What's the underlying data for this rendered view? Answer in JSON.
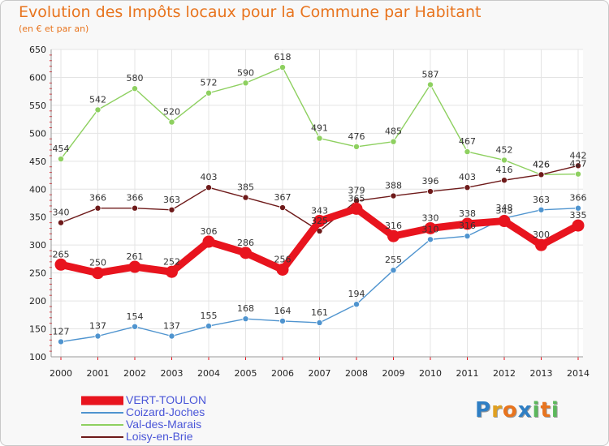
{
  "header": {
    "title": "Evolution des Impôts locaux pour la Commune par Habitant",
    "subtitle": "(en € et par an)"
  },
  "logo": {
    "letters": [
      "P",
      "r",
      "o",
      "x",
      "i",
      "t",
      "i"
    ],
    "colors": [
      "#2f7fc4",
      "#e0a020",
      "#e8741e",
      "#2f7fc4",
      "#5cb85c",
      "#e8741e",
      "#5cb85c"
    ]
  },
  "chart_data": {
    "type": "line",
    "title": "Evolution des Impôts locaux pour la Commune par Habitant",
    "subtitle": "(en € et par an)",
    "x": [
      "2000",
      "2001",
      "2002",
      "2003",
      "2004",
      "2005",
      "2006",
      "2007",
      "2008",
      "2009",
      "2010",
      "2011",
      "2012",
      "2013",
      "2014"
    ],
    "ylim": [
      100,
      650
    ],
    "yticks": [
      100,
      150,
      200,
      250,
      300,
      350,
      400,
      450,
      500,
      550,
      600,
      650
    ],
    "grid": true,
    "legend_position": "bottom-left",
    "series": [
      {
        "name": "VERT-TOULON",
        "color": "#e8141e",
        "values": [
          265,
          250,
          261,
          252,
          306,
          286,
          256,
          343,
          365,
          316,
          330,
          338,
          343,
          300,
          335
        ]
      },
      {
        "name": "Coizard-Joches",
        "color": "#4f94cf",
        "values": [
          127,
          137,
          154,
          137,
          155,
          168,
          164,
          161,
          194,
          255,
          310,
          316,
          348,
          363,
          366
        ]
      },
      {
        "name": "Val-des-Marais",
        "color": "#8ed060",
        "values": [
          454,
          542,
          580,
          520,
          572,
          590,
          618,
          491,
          476,
          485,
          587,
          467,
          452,
          426,
          427
        ]
      },
      {
        "name": "Loisy-en-Brie",
        "color": "#6e1a1a",
        "values": [
          340,
          366,
          366,
          363,
          403,
          385,
          367,
          325,
          379,
          388,
          396,
          403,
          416,
          426,
          442
        ]
      }
    ],
    "data_labels": {
      "VERT-TOULON": [
        "265",
        "250",
        "261",
        "252",
        "306",
        "286",
        "256",
        "343",
        "365",
        "316",
        "330",
        "338",
        "343",
        "300",
        "335"
      ],
      "Coizard-Joches": [
        "127",
        "137",
        "154",
        "137",
        "155",
        "168",
        "164",
        "161",
        "194",
        "255",
        "310",
        "316",
        "348",
        "363",
        "366"
      ],
      "Val-des-Marais": [
        "454",
        "542",
        "580",
        "520",
        "572",
        "590",
        "618",
        "491",
        "476",
        "485",
        "587",
        "467",
        "452",
        "426",
        "427"
      ],
      "Loisy-en-Brie": [
        "340",
        "366",
        "366",
        "363",
        "403",
        "385",
        "367",
        "325",
        "379",
        "388",
        "396",
        "403",
        "416",
        "426",
        "442"
      ]
    }
  }
}
